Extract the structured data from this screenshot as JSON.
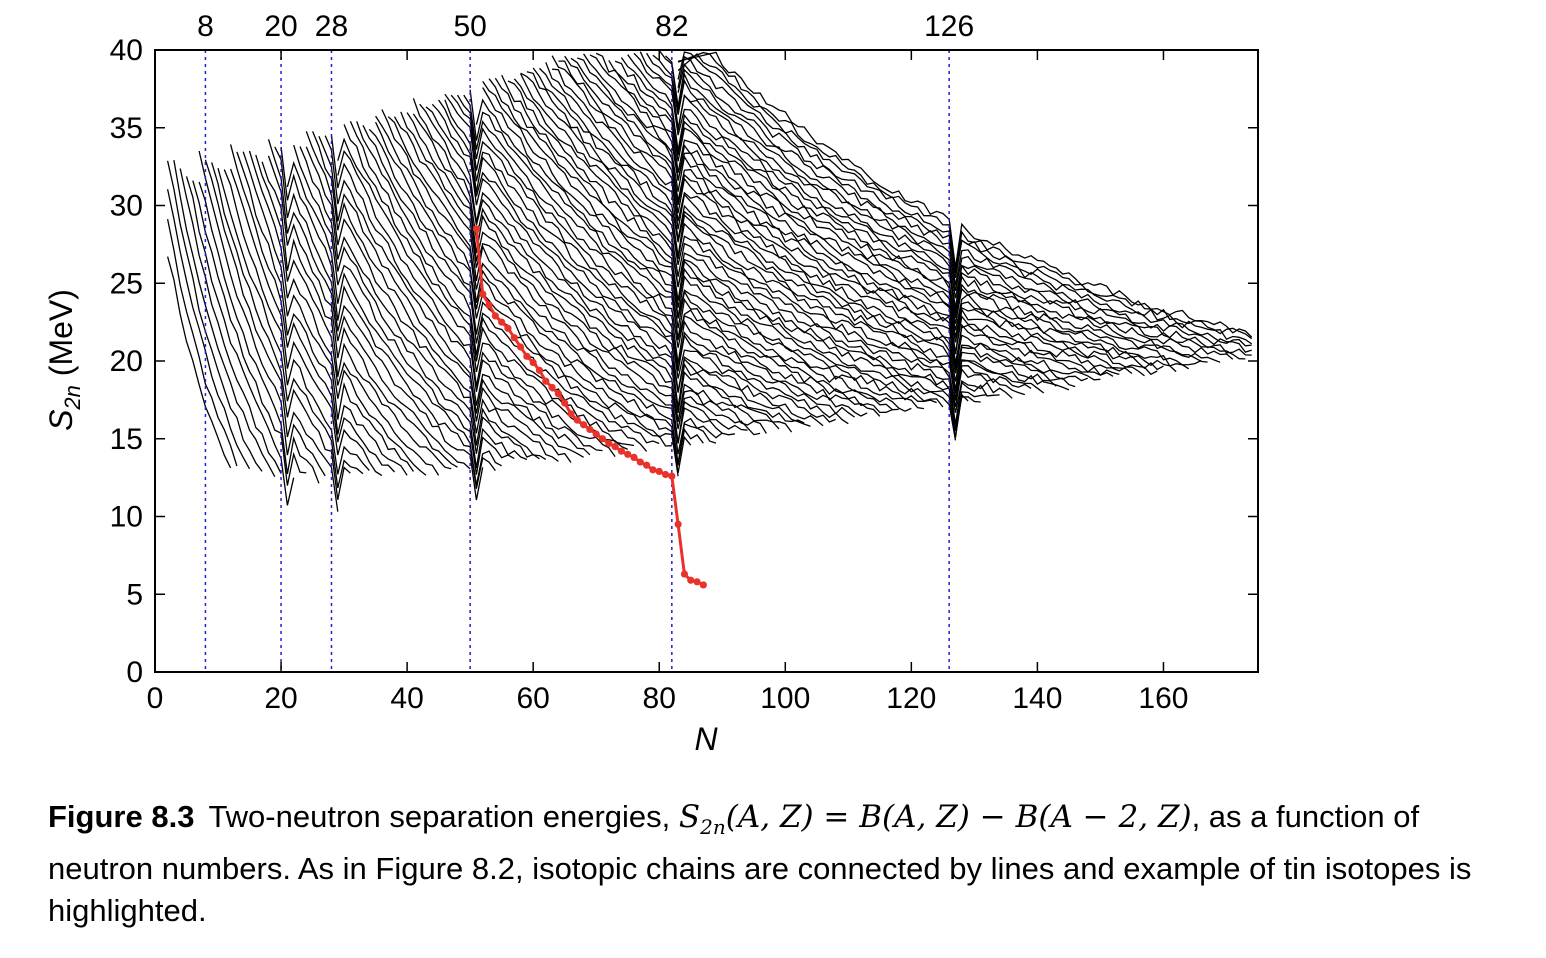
{
  "chart_data": {
    "type": "line",
    "xlabel": "N",
    "ylabel_base": "S",
    "ylabel_sub": "2n",
    "ylabel_unit": "(MeV)",
    "xlim": [
      0,
      175
    ],
    "ylim": [
      0,
      40
    ],
    "xticks": [
      0,
      20,
      40,
      60,
      80,
      100,
      120,
      140,
      160
    ],
    "yticks": [
      0,
      5,
      10,
      15,
      20,
      25,
      30,
      35,
      40
    ],
    "magic_numbers": [
      8,
      20,
      28,
      50,
      82,
      126
    ],
    "magic_line_color": "#1f1fd6",
    "chain_color": "#000000",
    "highlight_color": "#e8322a",
    "highlight_series": {
      "x": [
        51,
        52,
        53,
        54,
        55,
        56,
        57,
        58,
        59,
        60,
        61,
        62,
        63,
        64,
        65,
        66,
        67,
        68,
        69,
        70,
        71,
        72,
        73,
        74,
        75,
        76,
        77,
        78,
        79,
        80,
        81,
        82,
        83,
        84,
        85,
        86,
        87
      ],
      "y": [
        28.5,
        24.3,
        23.6,
        22.9,
        22.5,
        22.1,
        21.5,
        20.9,
        20.3,
        19.9,
        19.4,
        18.7,
        18.3,
        17.9,
        17.3,
        16.6,
        16.2,
        15.9,
        15.6,
        15.3,
        15.0,
        14.7,
        14.5,
        14.2,
        14.0,
        13.8,
        13.5,
        13.3,
        13.0,
        12.9,
        12.7,
        12.6,
        9.5,
        6.3,
        5.9,
        5.8,
        5.6
      ]
    },
    "grid": false,
    "legend": "none"
  },
  "caption": {
    "label": "Figure 8.3",
    "text1": "Two-neutron separation energies, ",
    "sym_S": "S",
    "sym_S_sub": "2n",
    "text2": "(A, Z) = ",
    "sym_B": "B",
    "text3": "(A, Z) − ",
    "text4": "(A − 2, Z)",
    "text5": ", as a function of neutron numbers. As in Figure 8.2, isotopic chains are connected by lines and example of tin isotopes is highlighted."
  }
}
